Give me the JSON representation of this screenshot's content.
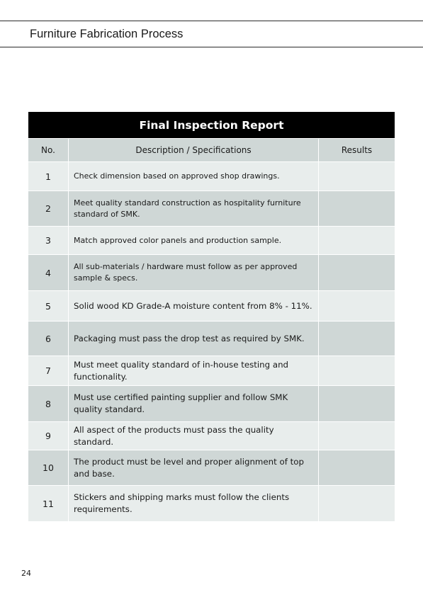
{
  "header": {
    "title": "Furniture Fabrication Process"
  },
  "report": {
    "title": "Final Inspection Report",
    "columns": {
      "no": "No.",
      "description": "Description / Specifications",
      "results": "Results"
    },
    "rows": [
      {
        "no": "1",
        "description": "Check dimension based on approved shop drawings.",
        "result": ""
      },
      {
        "no": "2",
        "description": "Meet quality standard construction as hospitality furniture standard of SMK.",
        "result": ""
      },
      {
        "no": "3",
        "description": "Match approved color panels and production sample.",
        "result": ""
      },
      {
        "no": "4",
        "description": "All sub-materials / hardware must follow as per approved sample & specs.",
        "result": ""
      },
      {
        "no": "5",
        "description": "Solid wood KD Grade-A moisture content from 8% - 11%.",
        "result": ""
      },
      {
        "no": "6",
        "description": "Packaging must pass the drop test as required by SMK.",
        "result": ""
      },
      {
        "no": "7",
        "description": "Must meet quality standard of in-house testing and functionality.",
        "result": ""
      },
      {
        "no": "8",
        "description": "Must use certified painting supplier and follow SMK quality standard.",
        "result": ""
      },
      {
        "no": "9",
        "description": "All aspect of the products must pass the quality standard.",
        "result": ""
      },
      {
        "no": "10",
        "description": "The product must be level and proper alignment of top and base.",
        "result": ""
      },
      {
        "no": "11",
        "description": "Stickers and shipping marks must follow the clients requirements.",
        "result": ""
      }
    ]
  },
  "footer": {
    "page_number": "24"
  }
}
